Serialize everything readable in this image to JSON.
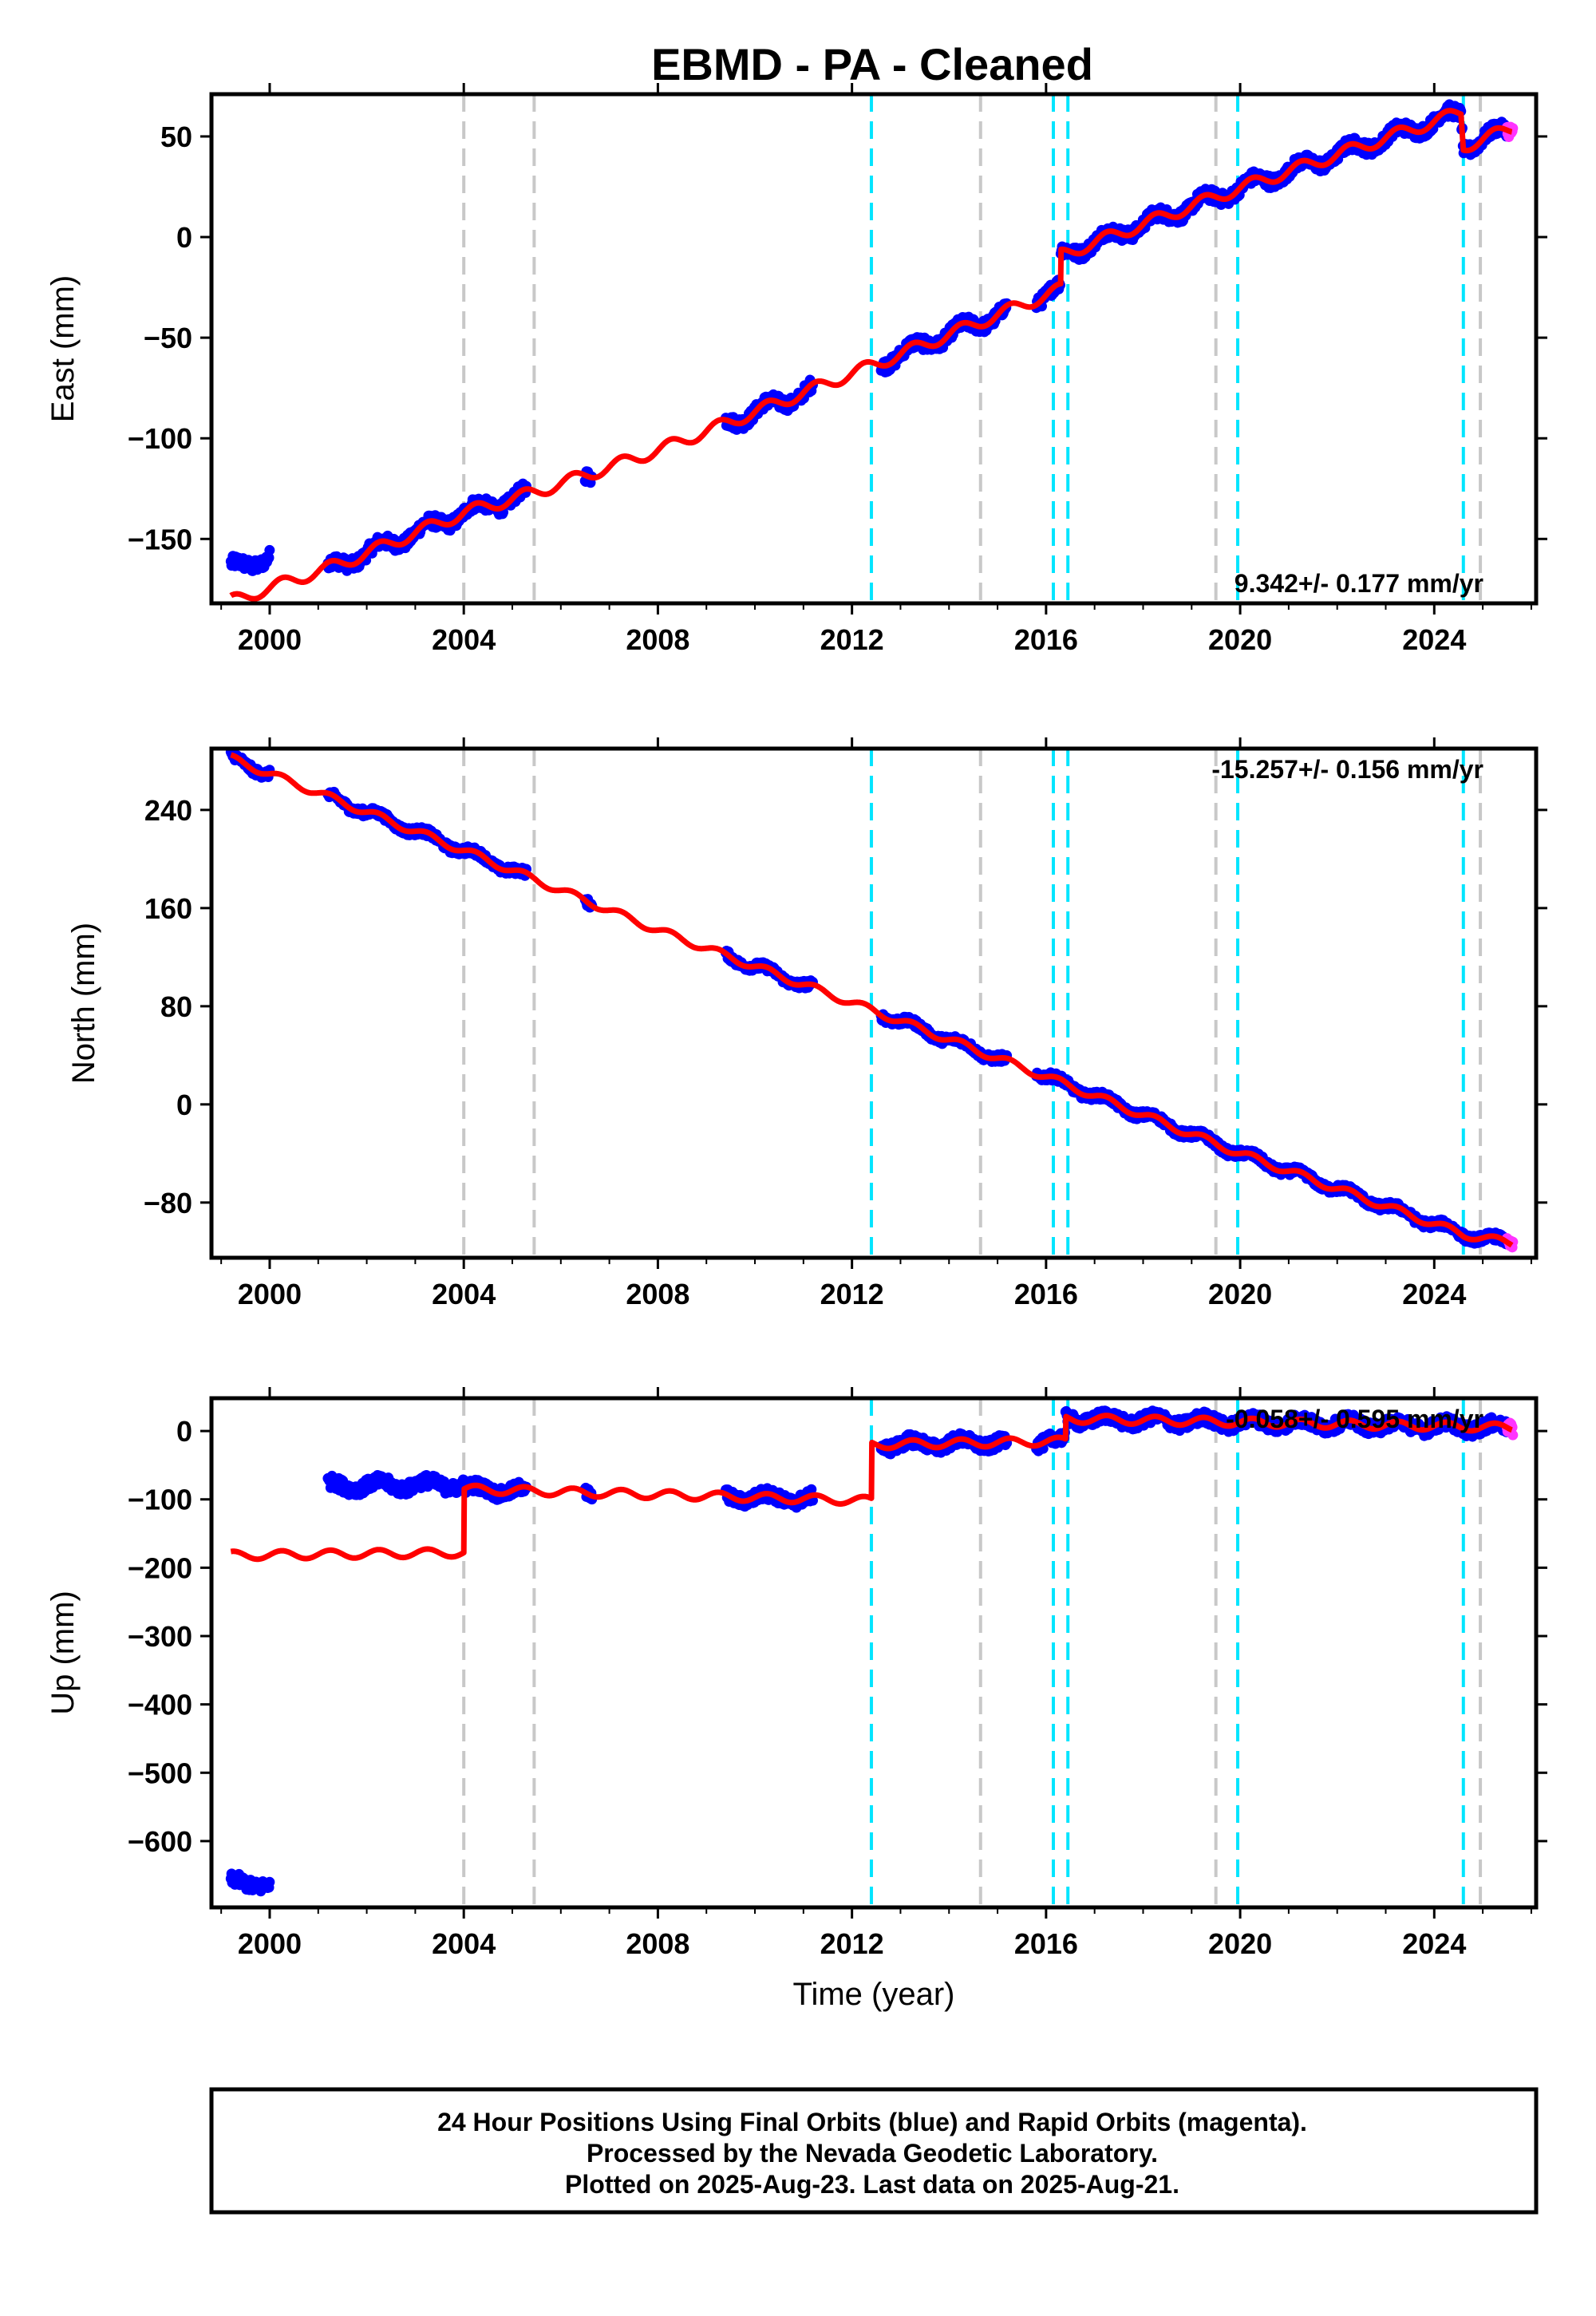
{
  "title": "EBMD  - PA - Cleaned",
  "colors": {
    "final_orbits": "#0000ff",
    "rapid_orbits": "#ff33ff",
    "model": "#ff0000",
    "event_grey": "#c8c8c8",
    "event_cyan": "#00e5ff"
  },
  "chart_data": [
    {
      "type": "scatter",
      "panel": "east",
      "ylabel": "East (mm)",
      "xlabel": "",
      "xlim": [
        1998.8,
        2026.1
      ],
      "ylim": [
        -182,
        71
      ],
      "xticks": [
        2000,
        2004,
        2008,
        2012,
        2016,
        2020,
        2024
      ],
      "yticks": [
        50,
        0,
        -50,
        -100,
        -150
      ],
      "ytick_labels": [
        "50",
        "0",
        "−50",
        "−100",
        "−150"
      ],
      "rate_label": "9.342+/- 0.177 mm/yr",
      "grey_event_lines": [
        2004.0,
        2005.45,
        2014.65,
        2019.5,
        2024.95
      ],
      "cyan_event_lines": [
        2012.4,
        2016.15,
        2016.45,
        2019.95,
        2024.6
      ],
      "model_knots": [
        [
          1999.2,
          -181
        ],
        [
          2001.5,
          -162
        ],
        [
          2004.0,
          -137
        ],
        [
          2005.45,
          -127
        ],
        [
          2008.0,
          -106
        ],
        [
          2012.4,
          -64
        ],
        [
          2016.3,
          -26
        ],
        [
          2016.3,
          -9
        ],
        [
          2019.95,
          24
        ],
        [
          2024.55,
          62
        ],
        [
          2024.6,
          45
        ],
        [
          2025.6,
          54
        ]
      ],
      "final_data_segments": [
        [
          1999.2,
          2000.0
        ],
        [
          2001.2,
          2005.3
        ],
        [
          2006.5,
          2006.65
        ],
        [
          2009.4,
          2011.2
        ],
        [
          2012.6,
          2015.2
        ],
        [
          2015.8,
          2025.5
        ]
      ],
      "final_data_offsets": [
        [
          1999.2,
          2000.0,
          16
        ]
      ],
      "rapid_data_range": [
        2025.5,
        2025.62
      ]
    },
    {
      "type": "scatter",
      "panel": "north",
      "ylabel": "North (mm)",
      "xlabel": "",
      "xlim": [
        1998.8,
        2026.1
      ],
      "ylim": [
        -125,
        290
      ],
      "xticks": [
        2000,
        2004,
        2008,
        2012,
        2016,
        2020,
        2024
      ],
      "yticks": [
        240,
        160,
        80,
        0,
        -80
      ],
      "ytick_labels": [
        "240",
        "160",
        "80",
        "0",
        "−80"
      ],
      "rate_label": "-15.257+/- 0.156 mm/yr",
      "grey_event_lines": [
        2004.0,
        2005.45,
        2014.65,
        2019.5,
        2024.95
      ],
      "cyan_event_lines": [
        2012.4,
        2016.15,
        2016.45,
        2019.95,
        2024.6
      ],
      "model_knots": [
        [
          1999.2,
          282
        ],
        [
          2004.0,
          207
        ],
        [
          2008.0,
          142
        ],
        [
          2012.4,
          77
        ],
        [
          2016.3,
          18
        ],
        [
          2020.0,
          -40
        ],
        [
          2024.6,
          -106
        ],
        [
          2025.6,
          -113
        ]
      ],
      "final_data_segments": [
        [
          1999.2,
          2000.0
        ],
        [
          2001.2,
          2005.3
        ],
        [
          2006.5,
          2006.65
        ],
        [
          2009.4,
          2011.2
        ],
        [
          2012.6,
          2015.2
        ],
        [
          2015.8,
          2025.5
        ]
      ],
      "final_data_offsets": [],
      "rapid_data_range": [
        2025.5,
        2025.62
      ]
    },
    {
      "type": "scatter",
      "panel": "up",
      "ylabel": "Up (mm)",
      "xlabel": "Time (year)",
      "xlim": [
        1998.8,
        2026.1
      ],
      "ylim": [
        -697,
        48
      ],
      "xticks": [
        2000,
        2004,
        2008,
        2012,
        2016,
        2020,
        2024
      ],
      "yticks": [
        0,
        -100,
        -200,
        -300,
        -400,
        -500,
        -600
      ],
      "ytick_labels": [
        "0",
        "−100",
        "−200",
        "−300",
        "−400",
        "−500",
        "−600"
      ],
      "rate_label": "-0.058+/- 0.595 mm/yr",
      "grey_event_lines": [
        2004.0,
        2005.45,
        2014.65,
        2019.5,
        2024.95
      ],
      "cyan_event_lines": [
        2012.4,
        2016.15,
        2016.45,
        2019.95,
        2024.6
      ],
      "model_knots": [
        [
          1999.2,
          -182
        ],
        [
          2004.0,
          -178
        ],
        [
          2004.0,
          -85
        ],
        [
          2012.4,
          -102
        ],
        [
          2012.4,
          -20
        ],
        [
          2016.4,
          -15
        ],
        [
          2016.4,
          18
        ],
        [
          2025.6,
          5
        ]
      ],
      "final_data_segments": [
        [
          1999.2,
          2000.0
        ],
        [
          2001.2,
          2005.3
        ],
        [
          2006.5,
          2006.65
        ],
        [
          2009.4,
          2011.2
        ],
        [
          2012.6,
          2015.2
        ],
        [
          2015.8,
          2025.5
        ]
      ],
      "final_data_offsets": [
        [
          1999.2,
          2000.0,
          -480
        ],
        [
          2001.2,
          2004.0,
          100
        ]
      ],
      "rapid_data_range": [
        2025.5,
        2025.62
      ]
    }
  ],
  "footer": {
    "line1": "24 Hour Positions Using Final Orbits (blue) and Rapid Orbits (magenta).",
    "line2": "Processed by the Nevada Geodetic Laboratory.",
    "line3": "Plotted on 2025-Aug-23. Last data on 2025-Aug-21."
  }
}
